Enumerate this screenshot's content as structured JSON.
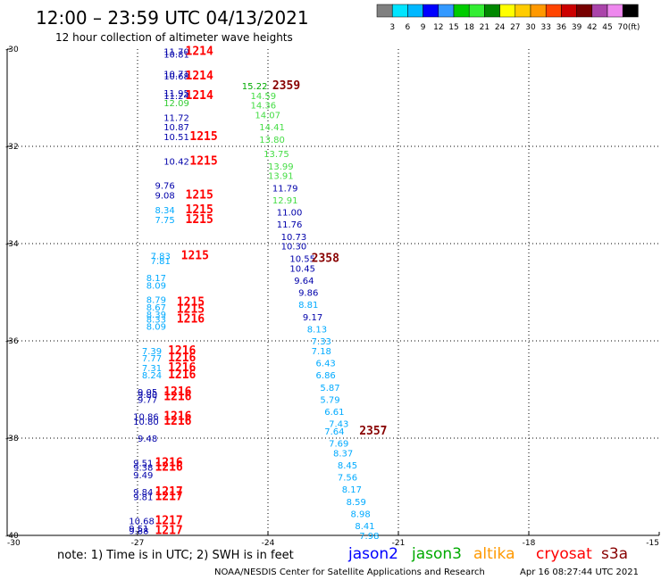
{
  "header": {
    "title": "12:00 – 23:59 UTC 04/13/2021",
    "subtitle": "12 hour collection of altimeter wave heights"
  },
  "colorbar": {
    "labels": [
      "3",
      "6",
      "9",
      "12",
      "15",
      "18",
      "21",
      "24",
      "27",
      "30",
      "33",
      "36",
      "39",
      "42",
      "45",
      "70"
    ],
    "unit": "(ft)",
    "colors": [
      "#808080",
      "#00e5ff",
      "#00b8ff",
      "#0000ff",
      "#3399ff",
      "#00cc00",
      "#33ee33",
      "#008800",
      "#ffff00",
      "#ffcc00",
      "#ff9900",
      "#ff4400",
      "#cc0000",
      "#770000",
      "#aa44aa",
      "#ee88ee",
      "#000000"
    ]
  },
  "axes": {
    "lat_ticks": [
      "-30",
      "-32",
      "-34",
      "-36",
      "-38",
      "-40"
    ],
    "lon_ticks": [
      "-30",
      "-27",
      "-24",
      "-21",
      "-18",
      "-15"
    ]
  },
  "legend": {
    "note": "note:  1) Time is in UTC;  2) SWH is in feet",
    "satellites": [
      {
        "name": "jason2",
        "color": "#0000ff"
      },
      {
        "name": "jason3",
        "color": "#00aa00"
      },
      {
        "name": "altika",
        "color": "#ff9900"
      },
      {
        "name": "cryosat",
        "color": "#ff0000"
      },
      {
        "name": "s3a",
        "color": "#880000"
      }
    ]
  },
  "footer": {
    "credit": "NOAA/NESDIS Center for Satellite Applications and Research",
    "timestamp": "Apr 16 08:27:44 UTC 2021"
  },
  "observations": [
    {
      "lon": -26.4,
      "lat": -30.05,
      "text": "11.70",
      "color": "#0000aa"
    },
    {
      "lon": -26.4,
      "lat": -30.1,
      "text": "10.81",
      "color": "#0000aa"
    },
    {
      "lon": -26.4,
      "lat": -30.5,
      "text": "10.71",
      "color": "#0000aa"
    },
    {
      "lon": -26.4,
      "lat": -30.55,
      "text": "10.68",
      "color": "#0000aa"
    },
    {
      "lon": -26.4,
      "lat": -30.9,
      "text": "11.95",
      "color": "#0000aa"
    },
    {
      "lon": -26.4,
      "lat": -30.95,
      "text": "11.24",
      "color": "#0000aa"
    },
    {
      "lon": -26.4,
      "lat": -31.1,
      "text": "12.09",
      "color": "#33cc33"
    },
    {
      "lon": -26.4,
      "lat": -31.4,
      "text": "11.72",
      "color": "#0000aa"
    },
    {
      "lon": -26.4,
      "lat": -31.6,
      "text": "10.87",
      "color": "#0000aa"
    },
    {
      "lon": -26.4,
      "lat": -31.8,
      "text": "10.51",
      "color": "#0000aa"
    },
    {
      "lon": -26.4,
      "lat": -32.3,
      "text": "10.42",
      "color": "#0000aa"
    },
    {
      "lon": -26.6,
      "lat": -32.8,
      "text": "9.76",
      "color": "#0000aa"
    },
    {
      "lon": -26.6,
      "lat": -33.0,
      "text": "9.08",
      "color": "#0000aa"
    },
    {
      "lon": -26.6,
      "lat": -33.3,
      "text": "8.34",
      "color": "#00aaff"
    },
    {
      "lon": -26.6,
      "lat": -33.5,
      "text": "7.75",
      "color": "#00aaff"
    },
    {
      "lon": -26.7,
      "lat": -34.25,
      "text": "7.83",
      "color": "#00aaff"
    },
    {
      "lon": -26.7,
      "lat": -34.35,
      "text": "7.81",
      "color": "#00aaff"
    },
    {
      "lon": -26.8,
      "lat": -34.7,
      "text": "8.17",
      "color": "#00aaff"
    },
    {
      "lon": -26.8,
      "lat": -34.85,
      "text": "8.09",
      "color": "#00aaff"
    },
    {
      "lon": -26.8,
      "lat": -35.15,
      "text": "8.79",
      "color": "#00aaff"
    },
    {
      "lon": -26.8,
      "lat": -35.3,
      "text": "8.67",
      "color": "#00aaff"
    },
    {
      "lon": -26.8,
      "lat": -35.45,
      "text": "8.39",
      "color": "#00aaff"
    },
    {
      "lon": -26.8,
      "lat": -35.55,
      "text": "8.33",
      "color": "#00aaff"
    },
    {
      "lon": -26.8,
      "lat": -35.7,
      "text": "8.09",
      "color": "#00aaff"
    },
    {
      "lon": -26.9,
      "lat": -36.2,
      "text": "7.39",
      "color": "#00aaff"
    },
    {
      "lon": -26.9,
      "lat": -36.35,
      "text": "7.77",
      "color": "#00aaff"
    },
    {
      "lon": -26.9,
      "lat": -36.55,
      "text": "7.31",
      "color": "#00aaff"
    },
    {
      "lon": -26.9,
      "lat": -36.7,
      "text": "8.24",
      "color": "#00aaff"
    },
    {
      "lon": -27.0,
      "lat": -37.05,
      "text": "9.05",
      "color": "#0000aa"
    },
    {
      "lon": -27.0,
      "lat": -37.1,
      "text": "9.80",
      "color": "#0000aa"
    },
    {
      "lon": -27.0,
      "lat": -37.2,
      "text": "9.77",
      "color": "#0000aa"
    },
    {
      "lon": -27.1,
      "lat": -37.55,
      "text": "10.86",
      "color": "#0000aa"
    },
    {
      "lon": -27.1,
      "lat": -37.65,
      "text": "10.80",
      "color": "#0000aa"
    },
    {
      "lon": -27.0,
      "lat": -38.0,
      "text": "9.48",
      "color": "#0000aa"
    },
    {
      "lon": -27.1,
      "lat": -38.5,
      "text": "9.51",
      "color": "#0000aa"
    },
    {
      "lon": -27.1,
      "lat": -38.6,
      "text": "9.38",
      "color": "#0000aa"
    },
    {
      "lon": -27.1,
      "lat": -38.75,
      "text": "9.49",
      "color": "#0000aa"
    },
    {
      "lon": -27.1,
      "lat": -39.1,
      "text": "9.84",
      "color": "#0000aa"
    },
    {
      "lon": -27.1,
      "lat": -39.2,
      "text": "9.81",
      "color": "#0000aa"
    },
    {
      "lon": -27.2,
      "lat": -39.7,
      "text": "10.68",
      "color": "#0000aa"
    },
    {
      "lon": -27.2,
      "lat": -39.85,
      "text": "9.51",
      "color": "#0000aa"
    },
    {
      "lon": -27.2,
      "lat": -39.9,
      "text": "9.88",
      "color": "#0000aa"
    },
    {
      "lon": -25.9,
      "lat": -30.05,
      "text": "1214",
      "color": "#ff0000",
      "big": true
    },
    {
      "lon": -25.9,
      "lat": -30.55,
      "text": "1214",
      "color": "#ff0000",
      "big": true
    },
    {
      "lon": -25.9,
      "lat": -30.95,
      "text": "1214",
      "color": "#ff0000",
      "big": true
    },
    {
      "lon": -25.8,
      "lat": -31.8,
      "text": "1215",
      "color": "#ff0000",
      "big": true
    },
    {
      "lon": -25.8,
      "lat": -32.3,
      "text": "1215",
      "color": "#ff0000",
      "big": true
    },
    {
      "lon": -25.9,
      "lat": -33.0,
      "text": "1215",
      "color": "#ff0000",
      "big": true
    },
    {
      "lon": -25.9,
      "lat": -33.3,
      "text": "1215",
      "color": "#ff0000",
      "big": true
    },
    {
      "lon": -25.9,
      "lat": -33.5,
      "text": "1215",
      "color": "#ff0000",
      "big": true
    },
    {
      "lon": -26.0,
      "lat": -34.25,
      "text": "1215",
      "color": "#ff0000",
      "big": true
    },
    {
      "lon": -26.1,
      "lat": -35.2,
      "text": "1215",
      "color": "#ff0000",
      "big": true
    },
    {
      "lon": -26.1,
      "lat": -35.35,
      "text": "1215",
      "color": "#ff0000",
      "big": true
    },
    {
      "lon": -26.1,
      "lat": -35.55,
      "text": "1216",
      "color": "#ff0000",
      "big": true
    },
    {
      "lon": -26.3,
      "lat": -36.2,
      "text": "1216",
      "color": "#ff0000",
      "big": true
    },
    {
      "lon": -26.3,
      "lat": -36.35,
      "text": "1216",
      "color": "#ff0000",
      "big": true
    },
    {
      "lon": -26.3,
      "lat": -36.55,
      "text": "1216",
      "color": "#ff0000",
      "big": true
    },
    {
      "lon": -26.3,
      "lat": -36.7,
      "text": "1216",
      "color": "#ff0000",
      "big": true
    },
    {
      "lon": -26.4,
      "lat": -37.05,
      "text": "1216",
      "color": "#ff0000",
      "big": true
    },
    {
      "lon": -26.4,
      "lat": -37.15,
      "text": "1216",
      "color": "#ff0000",
      "big": true
    },
    {
      "lon": -26.4,
      "lat": -37.55,
      "text": "1216",
      "color": "#ff0000",
      "big": true
    },
    {
      "lon": -26.4,
      "lat": -37.65,
      "text": "1216",
      "color": "#ff0000",
      "big": true
    },
    {
      "lon": -26.6,
      "lat": -38.5,
      "text": "1216",
      "color": "#ff0000",
      "big": true
    },
    {
      "lon": -26.6,
      "lat": -38.6,
      "text": "1216",
      "color": "#ff0000",
      "big": true
    },
    {
      "lon": -26.6,
      "lat": -39.1,
      "text": "1217",
      "color": "#ff0000",
      "big": true
    },
    {
      "lon": -26.6,
      "lat": -39.2,
      "text": "1217",
      "color": "#ff0000",
      "big": true
    },
    {
      "lon": -26.6,
      "lat": -39.7,
      "text": "1217",
      "color": "#ff0000",
      "big": true
    },
    {
      "lon": -26.6,
      "lat": -39.9,
      "text": "1217",
      "color": "#ff0000",
      "big": true
    },
    {
      "lon": -24.6,
      "lat": -30.75,
      "text": "15.22",
      "color": "#00aa00"
    },
    {
      "lon": -24.4,
      "lat": -30.95,
      "text": "14.59",
      "color": "#44dd44"
    },
    {
      "lon": -24.4,
      "lat": -31.15,
      "text": "14.36",
      "color": "#44dd44"
    },
    {
      "lon": -24.3,
      "lat": -31.35,
      "text": "14.07",
      "color": "#44dd44"
    },
    {
      "lon": -24.2,
      "lat": -31.6,
      "text": "14.41",
      "color": "#44dd44"
    },
    {
      "lon": -24.2,
      "lat": -31.85,
      "text": "13.80",
      "color": "#44dd44"
    },
    {
      "lon": -24.1,
      "lat": -32.15,
      "text": "13.75",
      "color": "#44dd44"
    },
    {
      "lon": -24.0,
      "lat": -32.4,
      "text": "13.99",
      "color": "#44dd44"
    },
    {
      "lon": -24.0,
      "lat": -32.6,
      "text": "13.91",
      "color": "#44dd44"
    },
    {
      "lon": -23.9,
      "lat": -32.85,
      "text": "11.79",
      "color": "#0000aa"
    },
    {
      "lon": -23.9,
      "lat": -33.1,
      "text": "12.91",
      "color": "#44dd44"
    },
    {
      "lon": -23.8,
      "lat": -33.35,
      "text": "11.00",
      "color": "#0000aa"
    },
    {
      "lon": -23.8,
      "lat": -33.6,
      "text": "11.76",
      "color": "#0000aa"
    },
    {
      "lon": -23.7,
      "lat": -33.85,
      "text": "10.73",
      "color": "#0000aa"
    },
    {
      "lon": -23.7,
      "lat": -34.05,
      "text": "10.30",
      "color": "#0000aa"
    },
    {
      "lon": -23.5,
      "lat": -34.3,
      "text": "10.55",
      "color": "#0000aa"
    },
    {
      "lon": -23.5,
      "lat": -34.5,
      "text": "10.45",
      "color": "#0000aa"
    },
    {
      "lon": -23.4,
      "lat": -34.75,
      "text": "9.64",
      "color": "#0000aa"
    },
    {
      "lon": -23.3,
      "lat": -35.0,
      "text": "9.86",
      "color": "#0000aa"
    },
    {
      "lon": -23.3,
      "lat": -35.25,
      "text": "8.81",
      "color": "#00aaff"
    },
    {
      "lon": -23.2,
      "lat": -35.5,
      "text": "9.17",
      "color": "#0000aa"
    },
    {
      "lon": -23.1,
      "lat": -35.75,
      "text": "8.13",
      "color": "#00aaff"
    },
    {
      "lon": -23.0,
      "lat": -36.0,
      "text": "7.33",
      "color": "#00aaff"
    },
    {
      "lon": -23.0,
      "lat": -36.2,
      "text": "7.18",
      "color": "#00aaff"
    },
    {
      "lon": -22.9,
      "lat": -36.45,
      "text": "6.43",
      "color": "#00aaff"
    },
    {
      "lon": -22.9,
      "lat": -36.7,
      "text": "6.86",
      "color": "#00aaff"
    },
    {
      "lon": -22.8,
      "lat": -36.95,
      "text": "5.87",
      "color": "#00aaff"
    },
    {
      "lon": -22.8,
      "lat": -37.2,
      "text": "5.79",
      "color": "#00aaff"
    },
    {
      "lon": -22.7,
      "lat": -37.45,
      "text": "6.61",
      "color": "#00aaff"
    },
    {
      "lon": -22.6,
      "lat": -37.7,
      "text": "7.43",
      "color": "#00aaff"
    },
    {
      "lon": -22.7,
      "lat": -37.85,
      "text": "7.64",
      "color": "#00aaff"
    },
    {
      "lon": -22.6,
      "lat": -38.1,
      "text": "7.69",
      "color": "#00aaff"
    },
    {
      "lon": -22.5,
      "lat": -38.3,
      "text": "8.37",
      "color": "#00aaff"
    },
    {
      "lon": -22.4,
      "lat": -38.55,
      "text": "8.45",
      "color": "#00aaff"
    },
    {
      "lon": -22.4,
      "lat": -38.8,
      "text": "7.56",
      "color": "#00aaff"
    },
    {
      "lon": -22.3,
      "lat": -39.05,
      "text": "8.17",
      "color": "#00aaff"
    },
    {
      "lon": -22.2,
      "lat": -39.3,
      "text": "8.59",
      "color": "#00aaff"
    },
    {
      "lon": -22.1,
      "lat": -39.55,
      "text": "8.98",
      "color": "#00aaff"
    },
    {
      "lon": -22.0,
      "lat": -39.8,
      "text": "8.41",
      "color": "#00aaff"
    },
    {
      "lon": -21.9,
      "lat": -40.0,
      "text": "7.98",
      "color": "#00aaff"
    },
    {
      "lon": -23.9,
      "lat": -30.75,
      "text": "2359",
      "color": "#880000",
      "big": true
    },
    {
      "lon": -23.0,
      "lat": -34.3,
      "text": "2358",
      "color": "#880000",
      "big": true
    },
    {
      "lon": -21.9,
      "lat": -37.85,
      "text": "2357",
      "color": "#880000",
      "big": true
    }
  ]
}
